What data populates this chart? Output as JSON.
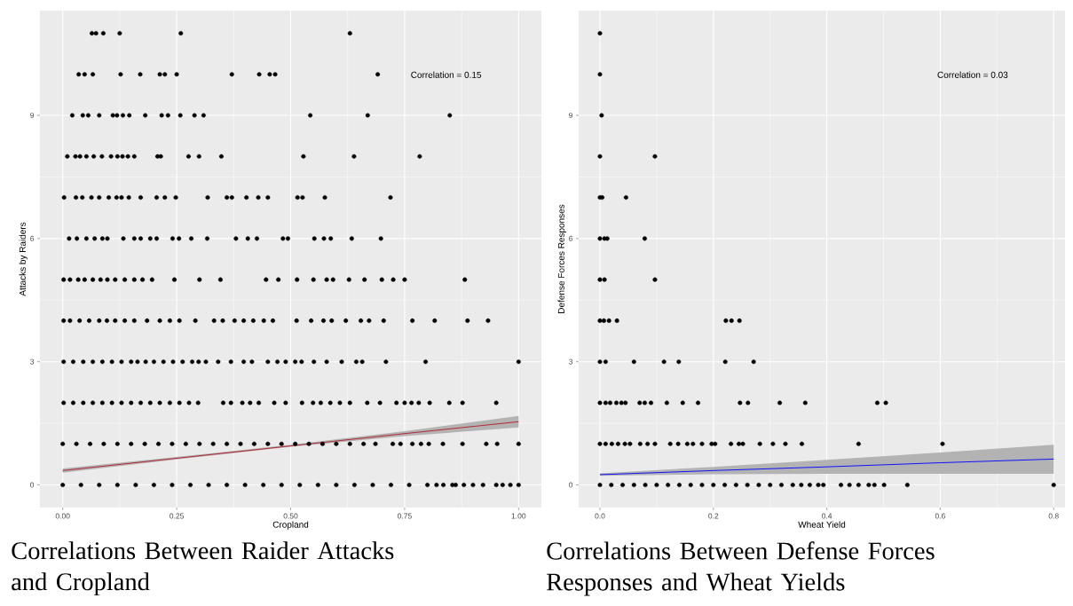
{
  "chart_data": [
    {
      "type": "scatter",
      "title": "Correlations Between Raider Attacks and Cropland",
      "xlabel": "Cropland",
      "ylabel": "Attacks by Raiders",
      "xlim": [
        -0.05,
        1.05
      ],
      "ylim": [
        -0.55,
        11.55
      ],
      "xticks": [
        {
          "value": 0,
          "label": "0.00"
        },
        {
          "value": 0.25,
          "label": "0.25"
        },
        {
          "value": 0.5,
          "label": "0.50"
        },
        {
          "value": 0.75,
          "label": "0.75"
        },
        {
          "value": 1,
          "label": "1.00"
        }
      ],
      "yticks": [
        0,
        3,
        6,
        9
      ],
      "grid": true,
      "marker": "circle",
      "annotations": [
        "Correlation = 0.15"
      ],
      "series": [
        {
          "color": "#000000",
          "x": [
            0.064,
            0.073,
            0.089,
            0.125,
            0.259,
            0.63,
            0.035,
            0.048,
            0.066,
            0.127,
            0.17,
            0.213,
            0.224,
            0.25,
            0.371,
            0.431,
            0.454,
            0.466,
            0.691,
            0.021,
            0.044,
            0.056,
            0.08,
            0.11,
            0.119,
            0.132,
            0.146,
            0.181,
            0.217,
            0.231,
            0.258,
            0.289,
            0.309,
            0.543,
            0.669,
            0.849,
            0.01,
            0.028,
            0.038,
            0.052,
            0.068,
            0.086,
            0.106,
            0.12,
            0.131,
            0.143,
            0.157,
            0.208,
            0.215,
            0.276,
            0.299,
            0.348,
            0.528,
            0.639,
            0.783,
            0.003,
            0.029,
            0.043,
            0.063,
            0.08,
            0.101,
            0.118,
            0.129,
            0.145,
            0.171,
            0.206,
            0.224,
            0.248,
            0.318,
            0.36,
            0.371,
            0.403,
            0.429,
            0.45,
            0.515,
            0.526,
            0.575,
            0.719,
            0.014,
            0.031,
            0.052,
            0.07,
            0.087,
            0.098,
            0.133,
            0.157,
            0.171,
            0.192,
            0.206,
            0.241,
            0.255,
            0.282,
            0.317,
            0.38,
            0.406,
            0.426,
            0.483,
            0.494,
            0.552,
            0.573,
            0.588,
            0.634,
            0.698,
            0.002,
            0.016,
            0.034,
            0.048,
            0.066,
            0.083,
            0.098,
            0.115,
            0.136,
            0.157,
            0.175,
            0.196,
            0.245,
            0.3,
            0.346,
            0.446,
            0.473,
            0.514,
            0.55,
            0.579,
            0.593,
            0.628,
            0.662,
            0.7,
            0.725,
            0.75,
            0.882,
            0.002,
            0.016,
            0.037,
            0.058,
            0.08,
            0.097,
            0.115,
            0.136,
            0.157,
            0.185,
            0.213,
            0.235,
            0.256,
            0.291,
            0.332,
            0.351,
            0.377,
            0.397,
            0.418,
            0.441,
            0.461,
            0.513,
            0.545,
            0.572,
            0.59,
            0.621,
            0.654,
            0.672,
            0.704,
            0.767,
            0.816,
            0.888,
            0.933,
            0.002,
            0.023,
            0.045,
            0.066,
            0.087,
            0.108,
            0.129,
            0.15,
            0.164,
            0.182,
            0.2,
            0.221,
            0.242,
            0.263,
            0.284,
            0.298,
            0.314,
            0.341,
            0.369,
            0.397,
            0.415,
            0.45,
            0.471,
            0.489,
            0.51,
            0.524,
            0.551,
            0.579,
            0.612,
            0.644,
            0.657,
            0.709,
            0.796,
            1.0,
            0.002,
            0.023,
            0.045,
            0.066,
            0.087,
            0.108,
            0.129,
            0.15,
            0.171,
            0.192,
            0.213,
            0.235,
            0.256,
            0.277,
            0.297,
            0.352,
            0.369,
            0.394,
            0.411,
            0.43,
            0.464,
            0.489,
            0.525,
            0.549,
            0.566,
            0.587,
            0.608,
            0.63,
            0.668,
            0.696,
            0.732,
            0.75,
            0.765,
            0.781,
            0.805,
            0.848,
            0.877,
            0.951,
            0.0,
            0.03,
            0.06,
            0.09,
            0.12,
            0.15,
            0.18,
            0.21,
            0.24,
            0.27,
            0.3,
            0.33,
            0.36,
            0.39,
            0.42,
            0.45,
            0.48,
            0.51,
            0.54,
            0.57,
            0.6,
            0.63,
            0.66,
            0.686,
            0.724,
            0.741,
            0.767,
            0.786,
            0.803,
            0.834,
            0.877,
            0.929,
            0.953,
            1.0,
            0.0,
            0.04,
            0.08,
            0.12,
            0.16,
            0.2,
            0.24,
            0.28,
            0.32,
            0.36,
            0.4,
            0.44,
            0.48,
            0.52,
            0.56,
            0.6,
            0.64,
            0.68,
            0.72,
            0.76,
            0.8,
            0.82,
            0.835,
            0.855,
            0.862,
            0.88,
            0.9,
            0.922,
            0.951,
            0.965,
            0.982,
            1.0
          ],
          "values": [
            11,
            11,
            11,
            11,
            11,
            11,
            10,
            10,
            10,
            10,
            10,
            10,
            10,
            10,
            10,
            10,
            10,
            10,
            10,
            9,
            9,
            9,
            9,
            9,
            9,
            9,
            9,
            9,
            9,
            9,
            9,
            9,
            9,
            9,
            9,
            9,
            8,
            8,
            8,
            8,
            8,
            8,
            8,
            8,
            8,
            8,
            8,
            8,
            8,
            8,
            8,
            8,
            8,
            8,
            8,
            7,
            7,
            7,
            7,
            7,
            7,
            7,
            7,
            7,
            7,
            7,
            7,
            7,
            7,
            7,
            7,
            7,
            7,
            7,
            7,
            7,
            7,
            7,
            6,
            6,
            6,
            6,
            6,
            6,
            6,
            6,
            6,
            6,
            6,
            6,
            6,
            6,
            6,
            6,
            6,
            6,
            6,
            6,
            6,
            6,
            6,
            6,
            6,
            5,
            5,
            5,
            5,
            5,
            5,
            5,
            5,
            5,
            5,
            5,
            5,
            5,
            5,
            5,
            5,
            5,
            5,
            5,
            5,
            5,
            5,
            5,
            5,
            5,
            5,
            5,
            4,
            4,
            4,
            4,
            4,
            4,
            4,
            4,
            4,
            4,
            4,
            4,
            4,
            4,
            4,
            4,
            4,
            4,
            4,
            4,
            4,
            4,
            4,
            4,
            4,
            4,
            4,
            4,
            4,
            4,
            4,
            4,
            4,
            3,
            3,
            3,
            3,
            3,
            3,
            3,
            3,
            3,
            3,
            3,
            3,
            3,
            3,
            3,
            3,
            3,
            3,
            3,
            3,
            3,
            3,
            3,
            3,
            3,
            3,
            3,
            3,
            3,
            3,
            3,
            3,
            3,
            3,
            2,
            2,
            2,
            2,
            2,
            2,
            2,
            2,
            2,
            2,
            2,
            2,
            2,
            2,
            2,
            2,
            2,
            2,
            2,
            2,
            2,
            2,
            2,
            2,
            2,
            2,
            2,
            2,
            2,
            2,
            2,
            2,
            2,
            2,
            2,
            2,
            2,
            2,
            1,
            1,
            1,
            1,
            1,
            1,
            1,
            1,
            1,
            1,
            1,
            1,
            1,
            1,
            1,
            1,
            1,
            1,
            1,
            1,
            1,
            1,
            1,
            1,
            1,
            1,
            1,
            1,
            1,
            1,
            1,
            1,
            1,
            1,
            0,
            0,
            0,
            0,
            0,
            0,
            0,
            0,
            0,
            0,
            0,
            0,
            0,
            0,
            0,
            0,
            0,
            0,
            0,
            0,
            0,
            0,
            0,
            0,
            0,
            0,
            0,
            0,
            0,
            0,
            0,
            0
          ]
        },
        {
          "type": "line",
          "color": "#b2182b",
          "marker": "none",
          "x": [
            0,
            0.25,
            0.5,
            0.75,
            1
          ],
          "values": [
            0.35,
            0.65,
            0.95,
            1.25,
            1.54
          ],
          "lower": [
            0.3,
            0.62,
            0.93,
            1.19,
            1.4
          ],
          "upper": [
            0.4,
            0.68,
            0.98,
            1.31,
            1.68
          ]
        }
      ]
    },
    {
      "type": "scatter",
      "title": "Correlations Between Defense Forces Responses and Wheat Yields",
      "xlabel": "Wheat Yield",
      "ylabel": "Defense Forces Responses",
      "xlim": [
        -0.0375,
        0.82
      ],
      "ylim": [
        -0.55,
        11.55
      ],
      "xticks": [
        {
          "value": 0,
          "label": "0.0"
        },
        {
          "value": 0.2,
          "label": "0.2"
        },
        {
          "value": 0.4,
          "label": "0.4"
        },
        {
          "value": 0.6,
          "label": "0.6"
        },
        {
          "value": 0.8,
          "label": "0.8"
        }
      ],
      "yticks": [
        0,
        3,
        6,
        9
      ],
      "grid": true,
      "marker": "circle",
      "annotations": [
        "Correlation = 0.03"
      ],
      "series": [
        {
          "color": "#000000",
          "x": [
            0.0,
            0.0,
            0.003,
            0.0,
            0.097,
            0.0,
            0.004,
            0.046,
            0.0,
            0.008,
            0.013,
            0.079,
            0.0,
            0.008,
            0.097,
            0.0,
            0.007,
            0.016,
            0.03,
            0.222,
            0.232,
            0.246,
            0.0,
            0.01,
            0.06,
            0.113,
            0.139,
            0.221,
            0.271,
            0.0,
            0.01,
            0.018,
            0.029,
            0.038,
            0.045,
            0.07,
            0.079,
            0.09,
            0.118,
            0.146,
            0.173,
            0.247,
            0.261,
            0.317,
            0.362,
            0.489,
            0.504,
            0.0,
            0.01,
            0.021,
            0.032,
            0.044,
            0.053,
            0.071,
            0.084,
            0.097,
            0.124,
            0.138,
            0.154,
            0.164,
            0.18,
            0.197,
            0.203,
            0.231,
            0.245,
            0.252,
            0.282,
            0.305,
            0.327,
            0.356,
            0.456,
            0.604,
            0.0,
            0.02,
            0.04,
            0.06,
            0.08,
            0.1,
            0.12,
            0.14,
            0.16,
            0.18,
            0.2,
            0.22,
            0.24,
            0.26,
            0.28,
            0.3,
            0.32,
            0.34,
            0.355,
            0.37,
            0.385,
            0.394,
            0.425,
            0.44,
            0.456,
            0.474,
            0.484,
            0.501,
            0.542,
            0.8
          ],
          "values": [
            11,
            10,
            9,
            8,
            8,
            7,
            7,
            7,
            6,
            6,
            6,
            6,
            5,
            5,
            5,
            4,
            4,
            4,
            4,
            4,
            4,
            4,
            3,
            3,
            3,
            3,
            3,
            3,
            3,
            2,
            2,
            2,
            2,
            2,
            2,
            2,
            2,
            2,
            2,
            2,
            2,
            2,
            2,
            2,
            2,
            2,
            2,
            1,
            1,
            1,
            1,
            1,
            1,
            1,
            1,
            1,
            1,
            1,
            1,
            1,
            1,
            1,
            1,
            1,
            1,
            1,
            1,
            1,
            1,
            1,
            1,
            1,
            0,
            0,
            0,
            0,
            0,
            0,
            0,
            0,
            0,
            0,
            0,
            0,
            0,
            0,
            0,
            0,
            0,
            0,
            0,
            0,
            0,
            0,
            0,
            0,
            0,
            0,
            0,
            0,
            0,
            0
          ]
        },
        {
          "type": "line",
          "color": "#0000ff",
          "marker": "none",
          "x": [
            0,
            0.2,
            0.4,
            0.6,
            0.8
          ],
          "values": [
            0.25,
            0.35,
            0.44,
            0.54,
            0.63
          ],
          "lower": [
            0.22,
            0.26,
            0.27,
            0.27,
            0.27
          ],
          "upper": [
            0.28,
            0.44,
            0.61,
            0.79,
            0.98
          ]
        }
      ]
    }
  ]
}
